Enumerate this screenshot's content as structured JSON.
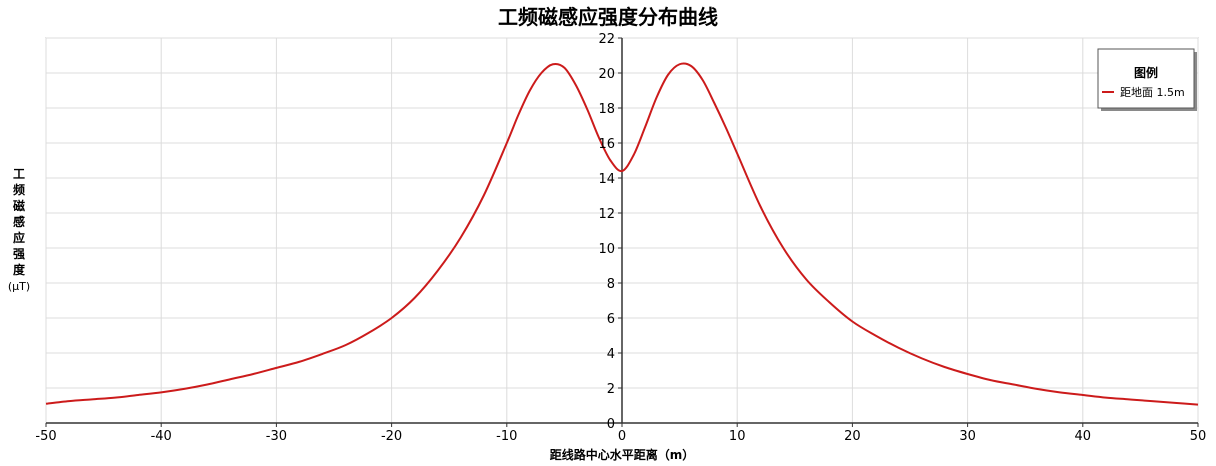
{
  "chart_data": {
    "type": "line",
    "title": "工频磁感应强度分布曲线",
    "xlabel": "距线路中心水平距离（m）",
    "ylabel": "工频磁感应强度",
    "ylabel_unit": "(μT)",
    "xlim": [
      -50,
      50
    ],
    "ylim": [
      0,
      22
    ],
    "x_ticks": [
      "-50",
      "-40",
      "-30",
      "-20",
      "-10",
      "0",
      "10",
      "20",
      "30",
      "40",
      "50"
    ],
    "y_ticks": [
      "0",
      "2",
      "4",
      "6",
      "8",
      "10",
      "12",
      "14",
      "16",
      "18",
      "20",
      "22"
    ],
    "grid": true,
    "legend": {
      "title": "图例",
      "placement": "top-right"
    },
    "series": [
      {
        "name": "距地面 1.5m",
        "color": "#cc1b1b",
        "x": [
          -50,
          -48,
          -46,
          -44,
          -42,
          -40,
          -38,
          -36,
          -34,
          -32,
          -30,
          -28,
          -26,
          -24,
          -22,
          -20,
          -18,
          -16,
          -14,
          -12,
          -10,
          -9,
          -8,
          -7,
          -6,
          -5,
          -4,
          -3,
          -2,
          -1,
          0,
          1,
          2,
          3,
          4,
          5,
          6,
          7,
          8,
          9,
          10,
          12,
          14,
          16,
          18,
          20,
          22,
          24,
          26,
          28,
          30,
          32,
          34,
          36,
          38,
          40,
          42,
          44,
          46,
          48,
          50
        ],
        "values": [
          1.1,
          1.25,
          1.35,
          1.45,
          1.6,
          1.75,
          1.95,
          2.2,
          2.5,
          2.8,
          3.15,
          3.5,
          3.95,
          4.45,
          5.15,
          6.0,
          7.15,
          8.7,
          10.6,
          13.0,
          16.0,
          17.6,
          19.0,
          20.0,
          20.5,
          20.3,
          19.3,
          17.9,
          16.3,
          15.0,
          14.4,
          15.3,
          16.9,
          18.6,
          19.9,
          20.5,
          20.4,
          19.6,
          18.3,
          16.9,
          15.4,
          12.4,
          10.0,
          8.2,
          6.9,
          5.8,
          5.0,
          4.3,
          3.7,
          3.2,
          2.8,
          2.45,
          2.2,
          1.95,
          1.75,
          1.6,
          1.45,
          1.35,
          1.25,
          1.15,
          1.05
        ]
      }
    ]
  }
}
